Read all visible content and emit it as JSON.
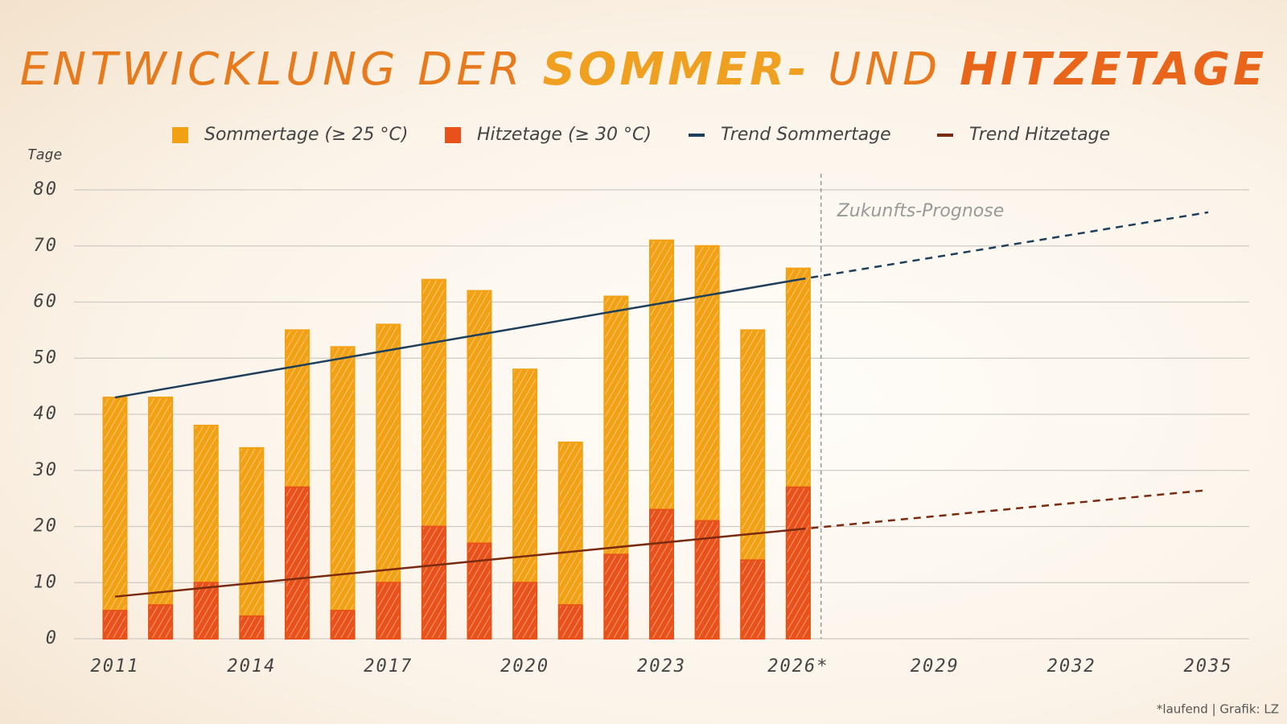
{
  "chart_data": {
    "type": "bar",
    "title_parts": [
      "ENTWICKLUNG DER ",
      "SOMMER-",
      " UND ",
      "HITZETAGE"
    ],
    "y_label": "Tage",
    "x": [
      2011,
      2012,
      2013,
      2014,
      2015,
      2016,
      2017,
      2018,
      2019,
      2020,
      2021,
      2022,
      2023,
      2024,
      2025,
      2026
    ],
    "series": [
      {
        "name": "Sommertage (≥ 25 °C)",
        "color": "#f2a115",
        "values": [
          43,
          43,
          38,
          34,
          55,
          52,
          56,
          64,
          62,
          48,
          35,
          61,
          71,
          70,
          55,
          66
        ]
      },
      {
        "name": "Hitzetage (≥ 30 °C)",
        "color": "#e8521a",
        "values": [
          5,
          6,
          10,
          4,
          27,
          5,
          10,
          20,
          17,
          10,
          6,
          15,
          23,
          21,
          14,
          27
        ]
      }
    ],
    "trends": [
      {
        "name": "Trend Sommertage",
        "color": "#1f3f5a",
        "x": [
          2011,
          2026
        ],
        "values": [
          43,
          64
        ],
        "forecast_x": [
          2026,
          2035
        ],
        "forecast_values": [
          64,
          76
        ]
      },
      {
        "name": "Trend Hitzetage",
        "color": "#7a2a10",
        "x": [
          2011,
          2026
        ],
        "values": [
          7.5,
          19.5
        ],
        "forecast_x": [
          2026,
          2035
        ],
        "forecast_values": [
          19.5,
          26.5
        ]
      }
    ],
    "forecast_line_x": 2026.5,
    "forecast_label": "Zukunfts-Prognose",
    "xlim": [
      2010.1,
      2035.9
    ],
    "xticks": [
      2011,
      2014,
      2017,
      2020,
      2023,
      {
        "value": 2026,
        "label": "2026*"
      },
      2029,
      2032,
      2035
    ],
    "ylim": [
      0,
      80
    ],
    "yticks": [
      0,
      10,
      20,
      30,
      40,
      50,
      60,
      70,
      80
    ],
    "grid": true,
    "footnote": "*laufend | Grafik: LZ"
  }
}
